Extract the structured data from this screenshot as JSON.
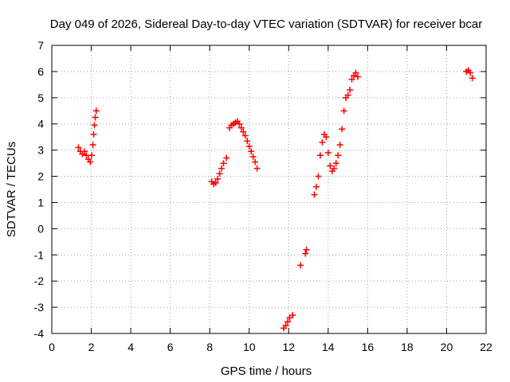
{
  "chart_data": {
    "type": "scatter",
    "title": "Day 049 of 2026, Sidereal Day-to-day VTEC variation (SDTVAR) for receiver bcar",
    "xlabel": "GPS time / hours",
    "ylabel": "SDTVAR / TECUs",
    "xlim": [
      0,
      22
    ],
    "ylim": [
      -4,
      7
    ],
    "grid": true,
    "marker": "plus",
    "colors": {
      "series": "#ff0000",
      "grid": "#a0a0a0",
      "axis": "#000000"
    },
    "xticks": [
      "0",
      "2",
      "4",
      "6",
      "8",
      "10",
      "12",
      "14",
      "16",
      "18",
      "20",
      "22"
    ],
    "yticks": [
      "-4",
      "-3",
      "-2",
      "-1",
      "0",
      "1",
      "2",
      "3",
      "4",
      "5",
      "6",
      "7"
    ],
    "series": [
      {
        "name": "SDTVAR",
        "x": [
          1.35,
          1.45,
          1.55,
          1.65,
          1.75,
          1.85,
          1.95,
          2.02,
          2.08,
          2.12,
          2.16,
          2.2,
          2.25,
          8.1,
          8.2,
          8.3,
          8.4,
          8.5,
          8.6,
          8.7,
          8.85,
          9.0,
          9.1,
          9.2,
          9.3,
          9.4,
          9.5,
          9.6,
          9.7,
          9.8,
          9.9,
          10.0,
          10.1,
          10.2,
          10.3,
          10.4,
          11.75,
          11.85,
          11.95,
          12.05,
          12.2,
          12.6,
          12.85,
          12.9,
          13.3,
          13.4,
          13.5,
          13.6,
          13.7,
          13.8,
          13.9,
          14.0,
          14.1,
          14.2,
          14.3,
          14.4,
          14.5,
          14.6,
          14.7,
          14.8,
          14.9,
          15.0,
          15.1,
          15.2,
          15.3,
          15.4,
          15.5,
          21.0,
          21.1,
          21.2,
          21.3
        ],
        "y": [
          3.1,
          2.95,
          2.85,
          2.95,
          2.8,
          2.65,
          2.55,
          2.8,
          3.2,
          3.6,
          3.95,
          4.25,
          4.5,
          1.8,
          1.7,
          1.75,
          1.9,
          2.1,
          2.3,
          2.5,
          2.7,
          3.85,
          3.95,
          4.0,
          4.05,
          4.1,
          4.0,
          3.85,
          3.7,
          3.55,
          3.35,
          3.15,
          2.95,
          2.75,
          2.55,
          2.3,
          -3.8,
          -3.7,
          -3.55,
          -3.4,
          -3.3,
          -1.4,
          -0.95,
          -0.8,
          1.3,
          1.6,
          2.0,
          2.8,
          3.3,
          3.6,
          3.5,
          2.9,
          2.4,
          2.2,
          2.3,
          2.5,
          2.8,
          3.2,
          3.8,
          4.5,
          5.0,
          5.1,
          5.3,
          5.7,
          5.85,
          5.95,
          5.8,
          6.0,
          6.05,
          5.95,
          5.75
        ]
      }
    ]
  }
}
